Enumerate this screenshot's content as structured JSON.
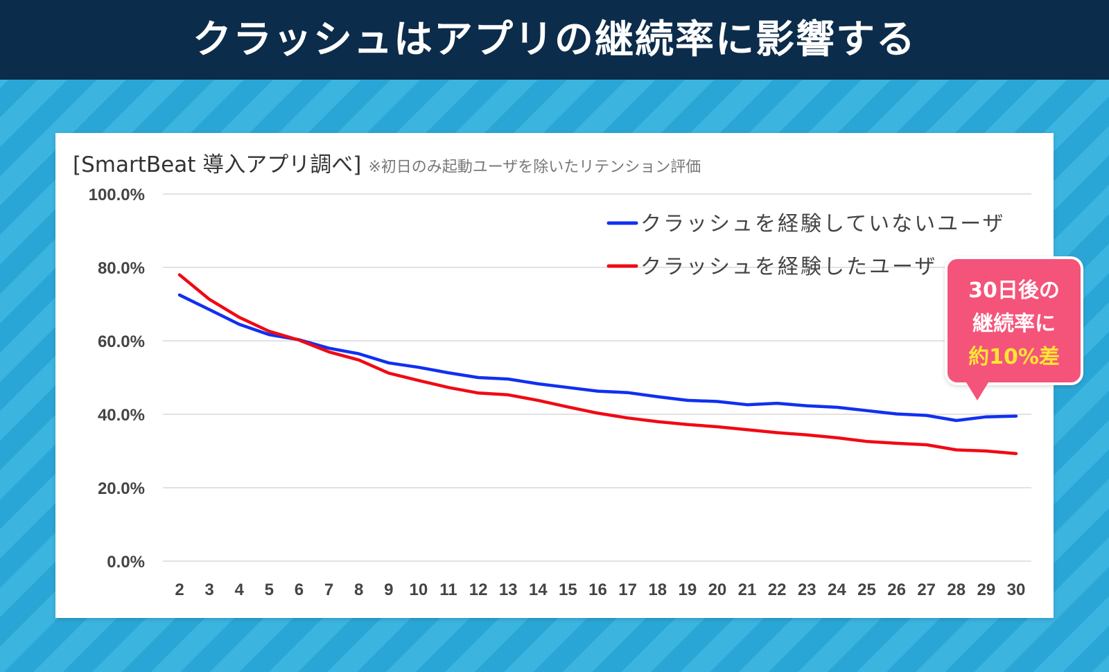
{
  "header": {
    "title": "クラッシュはアプリの継続率に影響する"
  },
  "note": {
    "main": "[SmartBeat 導入アプリ調べ]",
    "sub": "※初日のみ起動ユーザを除いたリテンション評価"
  },
  "callout": {
    "line1": "30日後の",
    "line2": "継続率に",
    "line3": "約10%差"
  },
  "chart_data": {
    "type": "line",
    "x": [
      2,
      3,
      4,
      5,
      6,
      7,
      8,
      9,
      10,
      11,
      12,
      13,
      14,
      15,
      16,
      17,
      18,
      19,
      20,
      21,
      22,
      23,
      24,
      25,
      26,
      27,
      28,
      29,
      30
    ],
    "ylim": [
      0,
      100
    ],
    "yticks": [
      0,
      20,
      40,
      60,
      80,
      100
    ],
    "ytick_labels": [
      "0.0%",
      "20.0%",
      "40.0%",
      "60.0%",
      "80.0%",
      "100.0%"
    ],
    "grid": true,
    "legend_position": "top-right",
    "series": [
      {
        "name": "クラッシュを経験していないユーザ",
        "color": "#1030f0",
        "values": [
          72.5,
          68.5,
          64.5,
          61.7,
          60.3,
          58.0,
          56.5,
          54.0,
          52.8,
          51.3,
          50.0,
          49.6,
          48.3,
          47.3,
          46.3,
          45.9,
          44.8,
          43.8,
          43.5,
          42.6,
          43.0,
          42.3,
          41.9,
          41.0,
          40.1,
          39.7,
          38.3,
          39.3,
          39.5
        ]
      },
      {
        "name": "クラッシュを経験したユーザ",
        "color": "#f00a14",
        "values": [
          78.0,
          71.3,
          66.4,
          62.6,
          60.2,
          57.0,
          54.8,
          51.2,
          49.2,
          47.3,
          45.8,
          45.3,
          43.8,
          42.0,
          40.3,
          39.0,
          38.0,
          37.2,
          36.6,
          35.8,
          35.0,
          34.4,
          33.6,
          32.6,
          32.1,
          31.7,
          30.3,
          30.0,
          29.3
        ]
      }
    ]
  }
}
